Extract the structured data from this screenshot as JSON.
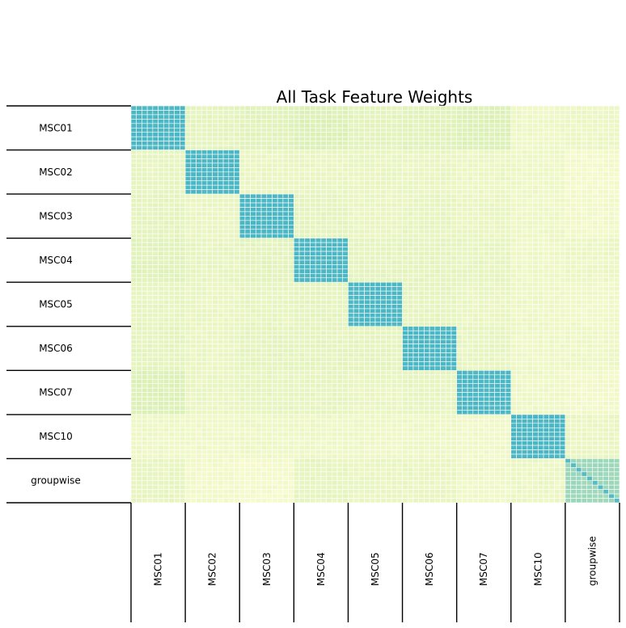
{
  "chart_data": {
    "type": "heatmap",
    "title": "All Task Feature Weights",
    "xlabel": "",
    "ylabel": "",
    "groups": [
      "MSC01",
      "MSC02",
      "MSC03",
      "MSC04",
      "MSC05",
      "MSC06",
      "MSC07",
      "MSC10",
      "groupwise"
    ],
    "cells_per_group": 10,
    "block_weights": [
      [
        1.0,
        0.22,
        0.26,
        0.3,
        0.24,
        0.26,
        0.3,
        0.14,
        0.16
      ],
      [
        0.2,
        1.0,
        0.18,
        0.18,
        0.18,
        0.18,
        0.16,
        0.14,
        0.08
      ],
      [
        0.22,
        0.18,
        1.0,
        0.22,
        0.18,
        0.2,
        0.18,
        0.14,
        0.1
      ],
      [
        0.26,
        0.2,
        0.24,
        1.0,
        0.22,
        0.22,
        0.2,
        0.14,
        0.16
      ],
      [
        0.2,
        0.18,
        0.2,
        0.22,
        1.0,
        0.22,
        0.18,
        0.14,
        0.12
      ],
      [
        0.22,
        0.18,
        0.22,
        0.22,
        0.22,
        1.0,
        0.2,
        0.14,
        0.14
      ],
      [
        0.3,
        0.18,
        0.2,
        0.2,
        0.18,
        0.2,
        1.0,
        0.14,
        0.1
      ],
      [
        0.14,
        0.12,
        0.14,
        0.14,
        0.14,
        0.14,
        0.12,
        1.0,
        0.18
      ],
      [
        0.2,
        0.1,
        0.08,
        0.2,
        0.18,
        0.18,
        0.12,
        0.16,
        0.62
      ]
    ],
    "colormap": "YlGnBu",
    "colors": {
      "low": "#fdfdd2",
      "mid": "#d8efb3",
      "high": "#4bb7c4",
      "grid_line": "#ffffff",
      "axis_line": "#000000"
    },
    "grid": true,
    "legend": "none"
  }
}
